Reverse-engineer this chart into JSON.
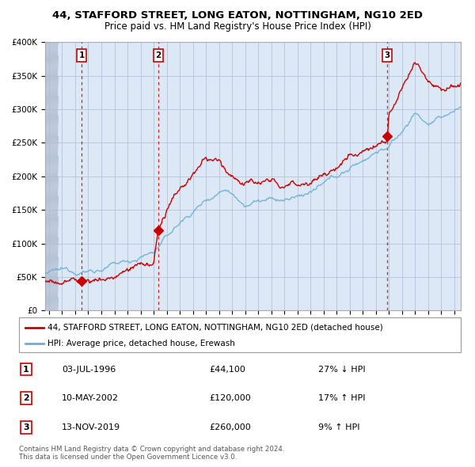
{
  "title_line1": "44, STAFFORD STREET, LONG EATON, NOTTINGHAM, NG10 2ED",
  "title_line2": "Price paid vs. HM Land Registry's House Price Index (HPI)",
  "ylim": [
    0,
    400000
  ],
  "xlim_start": 1993.7,
  "xlim_end": 2025.5,
  "yticks": [
    0,
    50000,
    100000,
    150000,
    200000,
    250000,
    300000,
    350000,
    400000
  ],
  "ytick_labels": [
    "£0",
    "£50K",
    "£100K",
    "£150K",
    "£200K",
    "£250K",
    "£300K",
    "£350K",
    "£400K"
  ],
  "xticks": [
    1994,
    1995,
    1996,
    1997,
    1998,
    1999,
    2000,
    2001,
    2002,
    2003,
    2004,
    2005,
    2006,
    2007,
    2008,
    2009,
    2010,
    2011,
    2012,
    2013,
    2014,
    2015,
    2016,
    2017,
    2018,
    2019,
    2020,
    2021,
    2022,
    2023,
    2024,
    2025
  ],
  "sale_dates": [
    1996.5,
    2002.36,
    2019.87
  ],
  "sale_prices": [
    44100,
    120000,
    260000
  ],
  "sale_labels": [
    "1",
    "2",
    "3"
  ],
  "hpi_color": "#6baed6",
  "price_color": "#cc0000",
  "bg_color": "#dce8f5",
  "grid_color": "#b8c8dc",
  "legend_line1": "44, STAFFORD STREET, LONG EATON, NOTTINGHAM, NG10 2ED (detached house)",
  "legend_line2": "HPI: Average price, detached house, Erewash",
  "table_rows": [
    [
      "1",
      "03-JUL-1996",
      "£44,100",
      "27% ↓ HPI"
    ],
    [
      "2",
      "10-MAY-2002",
      "£120,000",
      "17% ↑ HPI"
    ],
    [
      "3",
      "13-NOV-2019",
      "£260,000",
      "9% ↑ HPI"
    ]
  ],
  "footnote": "Contains HM Land Registry data © Crown copyright and database right 2024.\nThis data is licensed under the Open Government Licence v3.0."
}
